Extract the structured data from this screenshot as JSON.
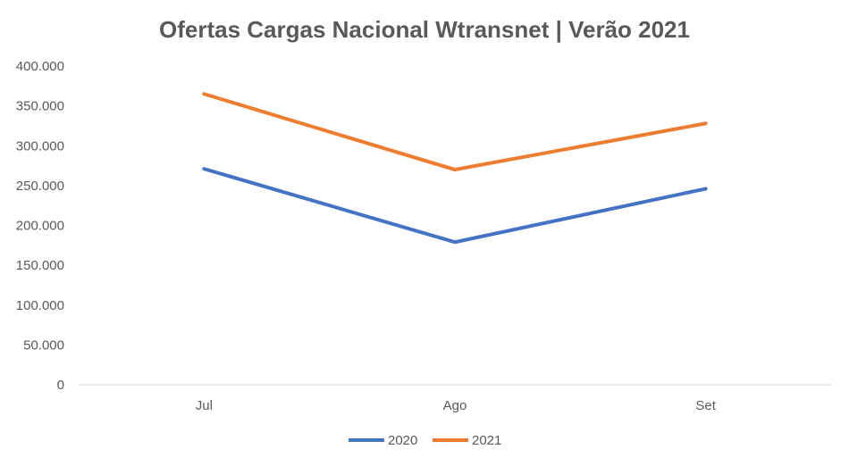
{
  "chart_data": {
    "type": "line",
    "title": "Ofertas Cargas Nacional Wtransnet | Verão 2021",
    "xlabel": "",
    "ylabel": "",
    "categories": [
      "Jul",
      "Ago",
      "Set"
    ],
    "series": [
      {
        "name": "2020",
        "values": [
          271000,
          179000,
          246000
        ],
        "color": "#4472c4"
      },
      {
        "name": "2021",
        "values": [
          365000,
          270000,
          328000
        ],
        "color": "#ed7d31"
      }
    ],
    "ylim": [
      0,
      400000
    ],
    "yticks": [
      0,
      50000,
      100000,
      150000,
      200000,
      250000,
      300000,
      350000,
      400000
    ],
    "ytick_labels": [
      "0",
      "50.000",
      "100.000",
      "150.000",
      "200.000",
      "250.000",
      "300.000",
      "350.000",
      "400.000"
    ],
    "grid": false,
    "legend_position": "bottom",
    "axis_color": "#d9d9d9",
    "text_color": "#595959"
  }
}
